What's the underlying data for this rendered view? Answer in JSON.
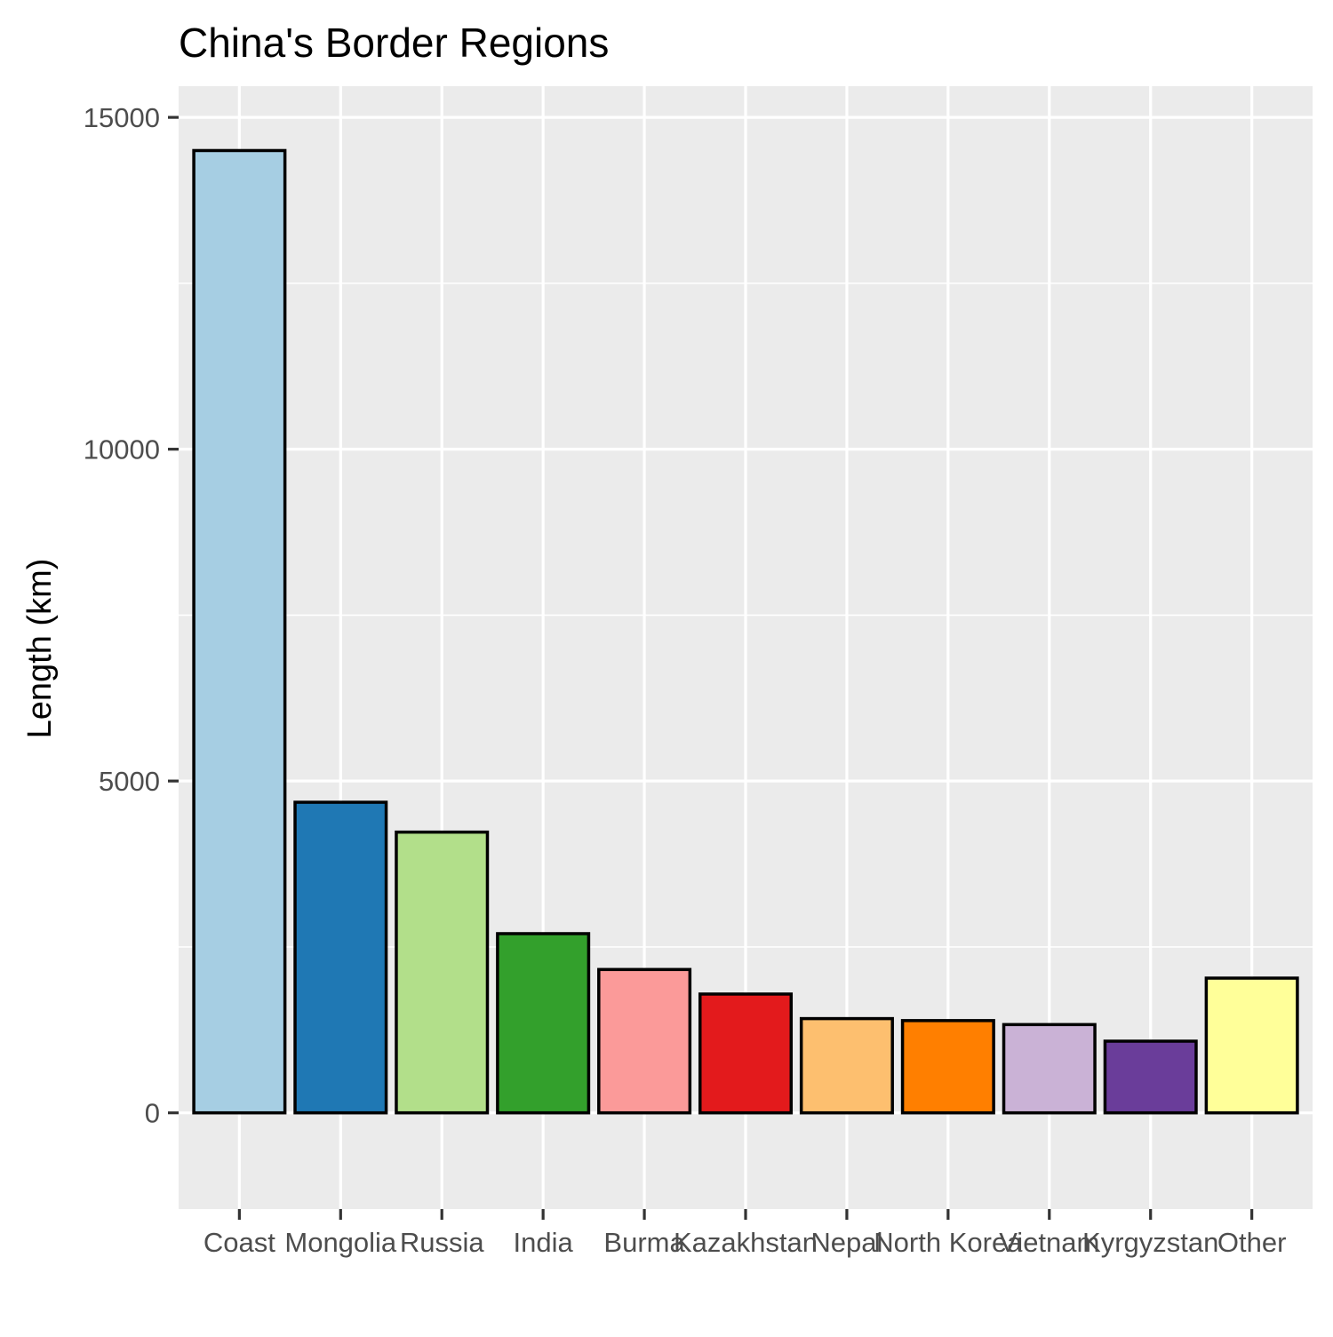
{
  "chart_data": {
    "type": "bar",
    "title": "China's Border Regions",
    "xlabel": "",
    "ylabel": "Length (km)",
    "ylim": [
      -1450,
      15470
    ],
    "yticks": [
      0,
      5000,
      10000,
      15000
    ],
    "grid": true,
    "categories": [
      "Coast",
      "Mongolia",
      "Russia",
      "India",
      "Burma",
      "Kazakhstan",
      "Nepal",
      "North Korea",
      "Vietnam",
      "Kyrgyzstan",
      "Other"
    ],
    "values": [
      14500,
      4680,
      4230,
      2700,
      2160,
      1790,
      1420,
      1390,
      1330,
      1080,
      2030
    ],
    "colors": [
      "#A6CEE3",
      "#1F78B4",
      "#B2DF8A",
      "#33A02C",
      "#FB9A99",
      "#E31A1C",
      "#FDBF6F",
      "#FF7F00",
      "#CAB2D6",
      "#6A3D9A",
      "#FFFF99"
    ]
  }
}
